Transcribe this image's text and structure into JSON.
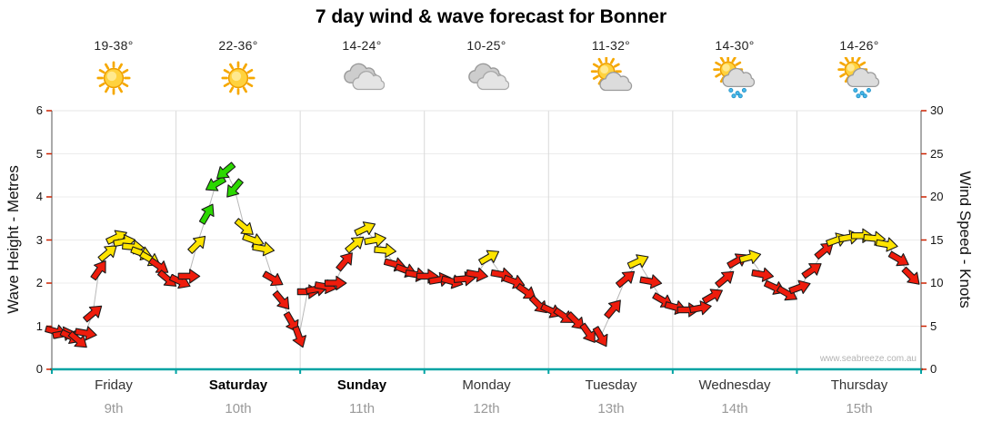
{
  "watermark": "www.seabreeze.com.au",
  "chart_data": {
    "type": "wind-forecast-arrow-series",
    "title": "7 day wind & wave forecast for Bonner",
    "left_axis": {
      "label": "Wave Height - Metres",
      "min": 0,
      "max": 6,
      "ticks": [
        0,
        1,
        2,
        3,
        4,
        5,
        6
      ]
    },
    "right_axis": {
      "label": "Wind Speed - Knots",
      "min": 0,
      "max": 30,
      "ticks": [
        0,
        5,
        10,
        15,
        20,
        25,
        30
      ]
    },
    "days": [
      {
        "name": "Friday",
        "date": "9th",
        "temp": "19-38°",
        "icon": "sunny",
        "bold": false
      },
      {
        "name": "Saturday",
        "date": "10th",
        "temp": "22-36°",
        "icon": "sunny",
        "bold": true
      },
      {
        "name": "Sunday",
        "date": "11th",
        "temp": "14-24°",
        "icon": "cloudy",
        "bold": true
      },
      {
        "name": "Monday",
        "date": "12th",
        "temp": "10-25°",
        "icon": "cloudy",
        "bold": false
      },
      {
        "name": "Tuesday",
        "date": "13th",
        "temp": "11-32°",
        "icon": "partly-cloudy",
        "bold": false
      },
      {
        "name": "Wednesday",
        "date": "14th",
        "temp": "14-30°",
        "icon": "sun-showers",
        "bold": false
      },
      {
        "name": "Thursday",
        "date": "15th",
        "temp": "14-26°",
        "icon": "sun-showers",
        "bold": false
      }
    ],
    "colors": {
      "red": "#ee1c0c",
      "yellow": "#ffe400",
      "green": "#2bd800",
      "baseline": "#00a3a3",
      "tick": "#cc2200",
      "grid": "#d9d9d9",
      "trace": "#b8b8b8"
    },
    "point_format": [
      "day_fraction_t(0-7)",
      "wind_knots",
      "arrow_direction_deg(0=east,cw)",
      "color"
    ],
    "points": [
      [
        0.03,
        4.4,
        15,
        "red"
      ],
      [
        0.09,
        4.1,
        -10,
        "red"
      ],
      [
        0.15,
        3.8,
        25,
        "red"
      ],
      [
        0.21,
        3.4,
        40,
        "red"
      ],
      [
        0.27,
        4.2,
        10,
        "red"
      ],
      [
        0.33,
        6.5,
        -40,
        "red"
      ],
      [
        0.38,
        11.5,
        -55,
        "red"
      ],
      [
        0.45,
        13.5,
        -40,
        "yellow"
      ],
      [
        0.52,
        15.3,
        -25,
        "yellow"
      ],
      [
        0.58,
        14.8,
        -10,
        "yellow"
      ],
      [
        0.65,
        14.2,
        5,
        "yellow"
      ],
      [
        0.72,
        13.5,
        20,
        "yellow"
      ],
      [
        0.79,
        12.8,
        30,
        "yellow"
      ],
      [
        0.86,
        12.0,
        35,
        "red"
      ],
      [
        0.93,
        10.5,
        40,
        "red"
      ],
      [
        1.03,
        10.2,
        25,
        "red"
      ],
      [
        1.1,
        10.8,
        0,
        "red"
      ],
      [
        1.17,
        14.5,
        -45,
        "yellow"
      ],
      [
        1.25,
        18.0,
        -60,
        "green"
      ],
      [
        1.32,
        21.5,
        150,
        "green"
      ],
      [
        1.4,
        23.0,
        140,
        "green"
      ],
      [
        1.47,
        21.0,
        130,
        "green"
      ],
      [
        1.55,
        16.5,
        40,
        "yellow"
      ],
      [
        1.62,
        15.0,
        20,
        "yellow"
      ],
      [
        1.7,
        14.0,
        10,
        "yellow"
      ],
      [
        1.78,
        10.5,
        30,
        "red"
      ],
      [
        1.85,
        8.0,
        50,
        "red"
      ],
      [
        1.93,
        5.5,
        60,
        "red"
      ],
      [
        1.99,
        3.8,
        70,
        "red"
      ],
      [
        2.06,
        9.0,
        0,
        "red"
      ],
      [
        2.13,
        9.3,
        -10,
        "red"
      ],
      [
        2.2,
        9.6,
        10,
        "red"
      ],
      [
        2.28,
        10.0,
        0,
        "red"
      ],
      [
        2.36,
        12.5,
        -50,
        "red"
      ],
      [
        2.44,
        14.5,
        -40,
        "yellow"
      ],
      [
        2.52,
        16.3,
        -25,
        "yellow"
      ],
      [
        2.6,
        15.0,
        -10,
        "yellow"
      ],
      [
        2.68,
        13.8,
        5,
        "yellow"
      ],
      [
        2.76,
        12.2,
        15,
        "red"
      ],
      [
        2.85,
        11.5,
        20,
        "red"
      ],
      [
        2.93,
        11.0,
        10,
        "red"
      ],
      [
        3.02,
        10.8,
        0,
        "red"
      ],
      [
        3.12,
        10.4,
        -10,
        "red"
      ],
      [
        3.22,
        10.2,
        15,
        "red"
      ],
      [
        3.32,
        10.5,
        -5,
        "red"
      ],
      [
        3.42,
        11.0,
        10,
        "red"
      ],
      [
        3.52,
        13.0,
        -30,
        "yellow"
      ],
      [
        3.62,
        11.0,
        10,
        "red"
      ],
      [
        3.72,
        10.2,
        20,
        "red"
      ],
      [
        3.82,
        9.0,
        35,
        "red"
      ],
      [
        3.92,
        7.5,
        45,
        "red"
      ],
      [
        4.02,
        6.8,
        25,
        "red"
      ],
      [
        4.12,
        6.2,
        35,
        "red"
      ],
      [
        4.22,
        5.6,
        45,
        "red"
      ],
      [
        4.32,
        4.2,
        55,
        "red"
      ],
      [
        4.42,
        3.8,
        60,
        "red"
      ],
      [
        4.52,
        7.0,
        -50,
        "red"
      ],
      [
        4.62,
        10.5,
        -40,
        "red"
      ],
      [
        4.72,
        12.5,
        -25,
        "yellow"
      ],
      [
        4.82,
        10.2,
        10,
        "red"
      ],
      [
        4.92,
        8.0,
        30,
        "red"
      ],
      [
        5.02,
        7.2,
        15,
        "red"
      ],
      [
        5.12,
        6.9,
        0,
        "red"
      ],
      [
        5.22,
        7.1,
        -10,
        "red"
      ],
      [
        5.32,
        8.5,
        -30,
        "red"
      ],
      [
        5.42,
        10.5,
        -40,
        "red"
      ],
      [
        5.52,
        12.6,
        -30,
        "red"
      ],
      [
        5.62,
        13.0,
        -15,
        "yellow"
      ],
      [
        5.72,
        11.0,
        10,
        "red"
      ],
      [
        5.82,
        9.5,
        25,
        "red"
      ],
      [
        5.92,
        8.8,
        30,
        "red"
      ],
      [
        6.02,
        9.5,
        -20,
        "red"
      ],
      [
        6.12,
        11.5,
        -35,
        "red"
      ],
      [
        6.22,
        13.8,
        -40,
        "red"
      ],
      [
        6.32,
        15.0,
        -20,
        "yellow"
      ],
      [
        6.42,
        15.3,
        -10,
        "yellow"
      ],
      [
        6.52,
        15.5,
        0,
        "yellow"
      ],
      [
        6.62,
        15.2,
        5,
        "yellow"
      ],
      [
        6.72,
        14.5,
        10,
        "yellow"
      ],
      [
        6.82,
        12.8,
        30,
        "red"
      ],
      [
        6.92,
        10.8,
        45,
        "red"
      ]
    ]
  }
}
